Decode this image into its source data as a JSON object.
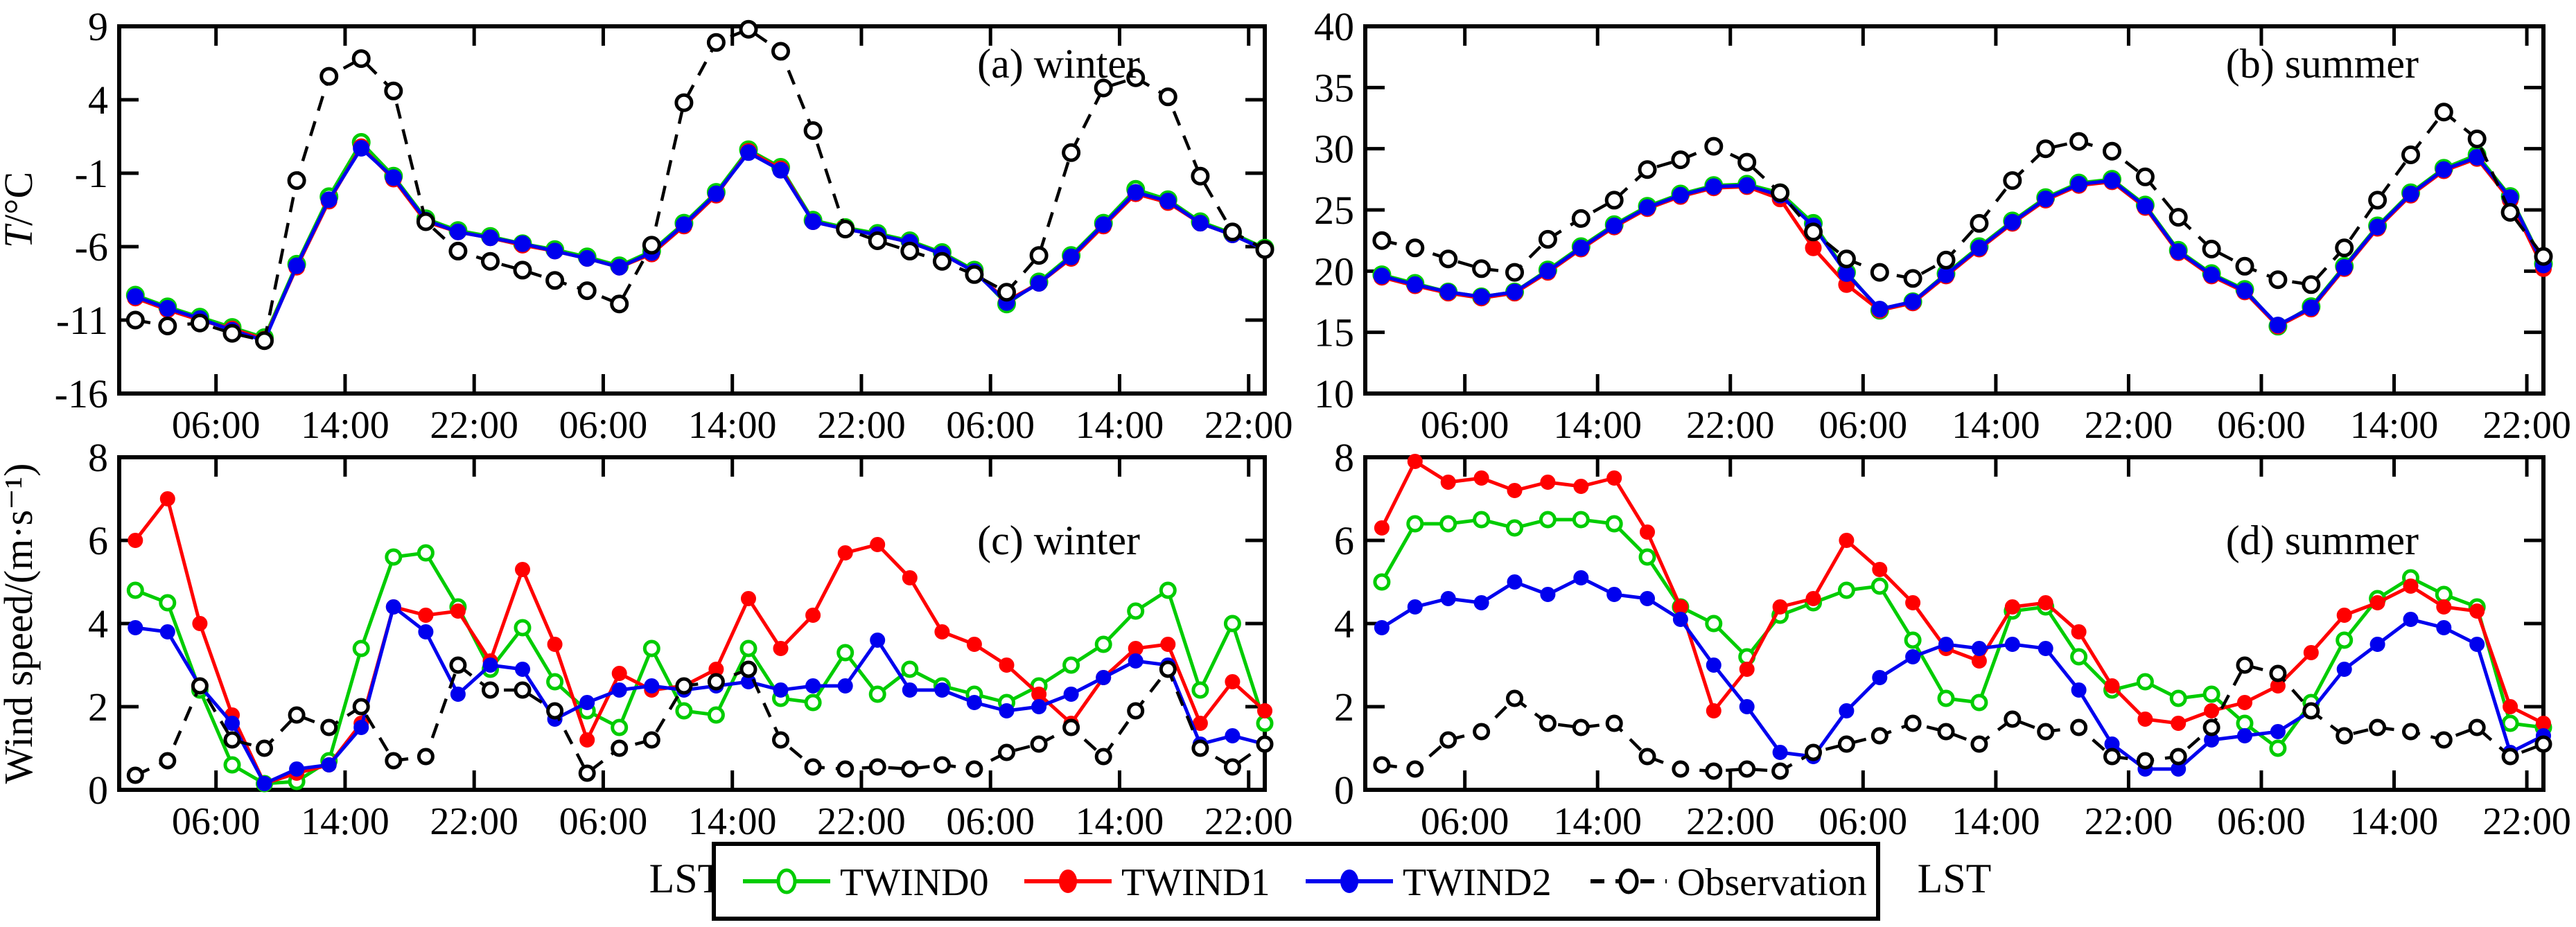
{
  "figure": {
    "background": "#ffffff",
    "colors": {
      "twind0": "#00CC00",
      "twind1": "#FF0000",
      "twind2": "#0000EE",
      "observation": "#000000",
      "axis": "#000000"
    },
    "legend": {
      "items": [
        {
          "label": "TWIND0",
          "series": "twind0",
          "marker": "open-circle",
          "line": "solid"
        },
        {
          "label": "TWIND1",
          "series": "twind1",
          "marker": "filled-circle",
          "line": "solid"
        },
        {
          "label": "TWIND2",
          "series": "twind2",
          "marker": "filled-circle",
          "line": "solid"
        },
        {
          "label": "Observation",
          "series": "observation",
          "marker": "open-circle",
          "line": "dashed"
        }
      ]
    },
    "x_axis_label": "LST"
  },
  "chart_data": {
    "type": "line",
    "xlim": [
      0,
      71
    ],
    "x_hours": [
      1,
      3,
      5,
      7,
      9,
      11,
      13,
      15,
      17,
      19,
      21,
      23,
      25,
      27,
      29,
      31,
      33,
      35,
      37,
      39,
      41,
      43,
      45,
      47,
      49,
      51,
      53,
      55,
      57,
      59,
      61,
      63,
      65,
      67,
      69,
      71
    ],
    "x_tick_hours": [
      6,
      14,
      22,
      30,
      38,
      46,
      54,
      62,
      70
    ],
    "x_tick_labels": [
      "06:00",
      "14:00",
      "22:00",
      "06:00",
      "14:00",
      "22:00",
      "06:00",
      "14:00",
      "22:00"
    ],
    "panels": [
      {
        "id": "a",
        "title": "(a) winter",
        "ylabel": "T/°C",
        "ylim": [
          -16,
          9
        ],
        "yticks": [
          9,
          4,
          -1,
          -6,
          -11,
          -16
        ],
        "series": [
          {
            "name": "TWIND0",
            "color": "twind0",
            "marker": "open",
            "line": "solid",
            "values": [
              -9.3,
              -10.1,
              -10.8,
              -11.5,
              -12.2,
              -7.2,
              -2.6,
              1.1,
              -1.2,
              -4.1,
              -4.9,
              -5.3,
              -5.8,
              -6.2,
              -6.7,
              -7.3,
              -6.3,
              -4.4,
              -2.3,
              0.6,
              -0.6,
              -4.2,
              -4.7,
              -5.1,
              -5.6,
              -6.4,
              -7.6,
              -9.9,
              -8.4,
              -6.6,
              -4.4,
              -2.1,
              -2.8,
              -4.3,
              -5.1,
              -6.1
            ]
          },
          {
            "name": "TWIND1",
            "color": "twind1",
            "marker": "filled",
            "line": "solid",
            "values": [
              -9.5,
              -10.3,
              -11.0,
              -11.6,
              -12.3,
              -7.4,
              -2.9,
              0.8,
              -1.4,
              -4.3,
              -5.0,
              -5.4,
              -5.9,
              -6.3,
              -6.8,
              -7.4,
              -6.5,
              -4.6,
              -2.5,
              0.5,
              -0.7,
              -4.3,
              -4.8,
              -5.2,
              -5.7,
              -6.5,
              -7.7,
              -9.7,
              -8.5,
              -6.8,
              -4.6,
              -2.4,
              -3.0,
              -4.4,
              -5.2,
              -6.2
            ]
          },
          {
            "name": "TWIND2",
            "color": "twind2",
            "marker": "filled",
            "line": "solid",
            "values": [
              -9.4,
              -10.2,
              -10.9,
              -11.7,
              -12.4,
              -7.3,
              -2.8,
              0.7,
              -1.3,
              -4.2,
              -5.0,
              -5.4,
              -5.8,
              -6.3,
              -6.8,
              -7.4,
              -6.4,
              -4.5,
              -2.4,
              0.4,
              -0.8,
              -4.3,
              -4.8,
              -5.2,
              -5.7,
              -6.5,
              -7.7,
              -9.8,
              -8.5,
              -6.7,
              -4.5,
              -2.3,
              -2.9,
              -4.4,
              -5.2,
              -6.2
            ]
          },
          {
            "name": "Observation",
            "color": "observation",
            "marker": "open",
            "line": "dashed",
            "values": [
              -11.0,
              -11.4,
              -11.2,
              -11.9,
              -12.4,
              -1.5,
              5.6,
              6.8,
              4.6,
              -4.3,
              -6.3,
              -7.0,
              -7.6,
              -8.3,
              -9.0,
              -9.9,
              -5.9,
              3.8,
              7.9,
              8.8,
              7.3,
              1.9,
              -4.8,
              -5.6,
              -6.3,
              -7.0,
              -7.9,
              -9.1,
              -6.6,
              0.4,
              4.8,
              5.5,
              4.2,
              -1.2,
              -5.0,
              -6.2
            ]
          }
        ]
      },
      {
        "id": "b",
        "title": "(b) summer",
        "ylabel": "",
        "ylim": [
          10,
          40
        ],
        "yticks": [
          40,
          35,
          30,
          25,
          20,
          15,
          10
        ],
        "series": [
          {
            "name": "TWIND0",
            "color": "twind0",
            "marker": "open",
            "line": "solid",
            "values": [
              19.7,
              19.0,
              18.3,
              17.9,
              18.3,
              20.1,
              22.0,
              23.8,
              25.3,
              26.3,
              27.0,
              27.1,
              26.4,
              23.9,
              19.9,
              16.8,
              17.5,
              19.8,
              22.0,
              24.1,
              26.0,
              27.2,
              27.5,
              25.4,
              21.7,
              19.8,
              18.5,
              15.5,
              17.1,
              20.4,
              23.7,
              26.4,
              28.4,
              29.5,
              26.1,
              20.6
            ]
          },
          {
            "name": "TWIND1",
            "color": "twind1",
            "marker": "filled",
            "line": "solid",
            "values": [
              19.5,
              18.8,
              18.2,
              17.8,
              18.2,
              19.9,
              21.8,
              23.6,
              25.1,
              26.1,
              26.8,
              26.9,
              25.9,
              21.9,
              18.9,
              16.8,
              17.4,
              19.6,
              21.8,
              23.9,
              25.8,
              27.0,
              27.3,
              25.2,
              21.5,
              19.6,
              18.3,
              15.5,
              16.9,
              20.2,
              23.5,
              26.2,
              28.2,
              29.2,
              25.8,
              20.2
            ]
          },
          {
            "name": "TWIND2",
            "color": "twind2",
            "marker": "filled",
            "line": "solid",
            "values": [
              19.6,
              18.9,
              18.3,
              17.9,
              18.3,
              20.0,
              21.9,
              23.7,
              25.2,
              26.2,
              26.9,
              27.0,
              26.2,
              23.7,
              19.8,
              16.9,
              17.5,
              19.7,
              21.9,
              24.0,
              25.9,
              27.1,
              27.4,
              25.3,
              21.6,
              19.7,
              18.4,
              15.6,
              17.0,
              20.3,
              23.6,
              26.3,
              28.3,
              29.3,
              26.0,
              20.5
            ]
          },
          {
            "name": "Observation",
            "color": "observation",
            "marker": "open",
            "line": "dashed",
            "values": [
              22.5,
              21.9,
              21.0,
              20.2,
              19.9,
              22.6,
              24.3,
              25.8,
              28.3,
              29.1,
              30.2,
              28.9,
              26.4,
              23.2,
              21.0,
              19.9,
              19.4,
              20.9,
              23.9,
              27.4,
              30.0,
              30.6,
              29.8,
              27.7,
              24.4,
              21.8,
              20.4,
              19.3,
              18.9,
              21.9,
              25.8,
              29.5,
              33.0,
              30.8,
              24.8,
              21.2
            ]
          }
        ]
      },
      {
        "id": "c",
        "title": "(c) winter",
        "ylabel": "Wind speed/(m·s⁻¹)",
        "ylim": [
          0,
          8
        ],
        "yticks": [
          8,
          6,
          4,
          2,
          0
        ],
        "series": [
          {
            "name": "TWIND0",
            "color": "twind0",
            "marker": "open",
            "line": "solid",
            "values": [
              4.8,
              4.5,
              2.4,
              0.6,
              0.15,
              0.2,
              0.7,
              3.4,
              5.6,
              5.7,
              4.4,
              2.9,
              3.9,
              2.6,
              1.9,
              1.5,
              3.4,
              1.9,
              1.8,
              3.4,
              2.2,
              2.1,
              3.3,
              2.3,
              2.9,
              2.5,
              2.3,
              2.1,
              2.5,
              3.0,
              3.5,
              4.3,
              4.8,
              2.4,
              4.0,
              1.6
            ]
          },
          {
            "name": "TWIND1",
            "color": "twind1",
            "marker": "filled",
            "line": "solid",
            "values": [
              6.0,
              7.0,
              4.0,
              1.8,
              0.15,
              0.4,
              0.6,
              1.6,
              4.4,
              4.2,
              4.3,
              3.1,
              5.3,
              3.5,
              1.2,
              2.8,
              2.4,
              2.5,
              2.9,
              4.6,
              3.4,
              4.2,
              5.7,
              5.9,
              5.1,
              3.8,
              3.5,
              3.0,
              2.3,
              1.6,
              2.7,
              3.4,
              3.5,
              1.6,
              2.6,
              1.9
            ]
          },
          {
            "name": "TWIND2",
            "color": "twind2",
            "marker": "filled",
            "line": "solid",
            "values": [
              3.9,
              3.8,
              2.5,
              1.6,
              0.15,
              0.5,
              0.6,
              1.5,
              4.4,
              3.8,
              2.3,
              3.0,
              2.9,
              1.7,
              2.1,
              2.4,
              2.5,
              2.4,
              2.5,
              2.6,
              2.4,
              2.5,
              2.5,
              3.6,
              2.4,
              2.4,
              2.1,
              1.9,
              2.0,
              2.3,
              2.7,
              3.1,
              3.0,
              1.1,
              1.3,
              1.1
            ]
          },
          {
            "name": "Observation",
            "color": "observation",
            "marker": "open",
            "line": "dashed",
            "values": [
              0.35,
              0.7,
              2.5,
              1.2,
              1.0,
              1.8,
              1.5,
              2.0,
              0.7,
              0.8,
              3.0,
              2.4,
              2.4,
              1.9,
              0.4,
              1.0,
              1.2,
              2.5,
              2.6,
              2.9,
              1.2,
              0.55,
              0.5,
              0.55,
              0.5,
              0.6,
              0.5,
              0.9,
              1.1,
              1.5,
              0.8,
              1.9,
              2.9,
              1.0,
              0.55,
              1.1
            ]
          }
        ]
      },
      {
        "id": "d",
        "title": "(d) summer",
        "ylabel": "",
        "ylim": [
          0,
          8
        ],
        "yticks": [
          8,
          6,
          4,
          2,
          0
        ],
        "series": [
          {
            "name": "TWIND0",
            "color": "twind0",
            "marker": "open",
            "line": "solid",
            "values": [
              5.0,
              6.4,
              6.4,
              6.5,
              6.3,
              6.5,
              6.5,
              6.4,
              5.6,
              4.4,
              4.0,
              3.2,
              4.2,
              4.5,
              4.8,
              4.9,
              3.6,
              2.2,
              2.1,
              4.3,
              4.4,
              3.2,
              2.4,
              2.6,
              2.2,
              2.3,
              1.6,
              1.0,
              2.1,
              3.6,
              4.6,
              5.1,
              4.7,
              4.4,
              1.6,
              1.5
            ]
          },
          {
            "name": "TWIND1",
            "color": "twind1",
            "marker": "filled",
            "line": "solid",
            "values": [
              6.3,
              7.9,
              7.4,
              7.5,
              7.2,
              7.4,
              7.3,
              7.5,
              6.2,
              4.4,
              1.9,
              2.9,
              4.4,
              4.6,
              6.0,
              5.3,
              4.5,
              3.4,
              3.1,
              4.4,
              4.5,
              3.8,
              2.5,
              1.7,
              1.6,
              1.9,
              2.1,
              2.5,
              3.3,
              4.2,
              4.5,
              4.9,
              4.4,
              4.3,
              2.0,
              1.6
            ]
          },
          {
            "name": "TWIND2",
            "color": "twind2",
            "marker": "filled",
            "line": "solid",
            "values": [
              3.9,
              4.4,
              4.6,
              4.5,
              5.0,
              4.7,
              5.1,
              4.7,
              4.6,
              4.1,
              3.0,
              2.0,
              0.9,
              0.8,
              1.9,
              2.7,
              3.2,
              3.5,
              3.4,
              3.5,
              3.4,
              2.4,
              1.1,
              0.5,
              0.5,
              1.2,
              1.3,
              1.4,
              1.9,
              2.9,
              3.5,
              4.1,
              3.9,
              3.5,
              0.9,
              1.3
            ]
          },
          {
            "name": "Observation",
            "color": "observation",
            "marker": "open",
            "line": "dashed",
            "values": [
              0.6,
              0.5,
              1.2,
              1.4,
              2.2,
              1.6,
              1.5,
              1.6,
              0.8,
              0.5,
              0.45,
              0.5,
              0.45,
              0.9,
              1.1,
              1.3,
              1.6,
              1.4,
              1.1,
              1.7,
              1.4,
              1.5,
              0.8,
              0.7,
              0.8,
              1.5,
              3.0,
              2.8,
              1.9,
              1.3,
              1.5,
              1.4,
              1.2,
              1.5,
              0.8,
              1.1
            ]
          }
        ]
      }
    ]
  }
}
